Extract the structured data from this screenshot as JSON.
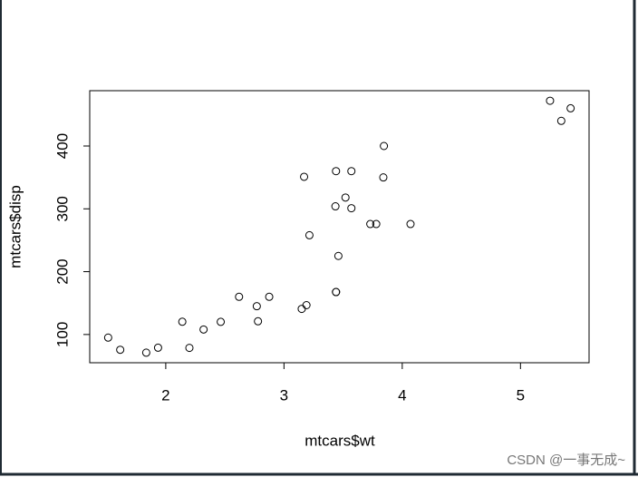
{
  "chart_data": {
    "type": "scatter",
    "x_label": "mtcars$wt",
    "y_label": "mtcars$disp",
    "x": [
      2.62,
      2.875,
      2.32,
      3.215,
      3.44,
      3.46,
      3.57,
      3.19,
      3.15,
      3.44,
      3.44,
      4.07,
      3.73,
      3.78,
      5.25,
      5.424,
      5.345,
      2.2,
      1.615,
      1.835,
      2.465,
      3.52,
      3.435,
      3.84,
      3.845,
      1.935,
      2.14,
      1.513,
      3.17,
      2.77,
      3.57,
      2.78
    ],
    "values": [
      160,
      160,
      108,
      258,
      360,
      225,
      360,
      146.7,
      140.8,
      167.6,
      167.6,
      275.8,
      275.8,
      275.8,
      472,
      460,
      440,
      78.7,
      75.7,
      71.1,
      120.1,
      318,
      304,
      350,
      400,
      79,
      120.3,
      95.1,
      351,
      145,
      301,
      121
    ],
    "color": "#000000",
    "xlim": [
      1.357,
      5.58
    ],
    "ylim": [
      55.06,
      488.04
    ],
    "xticks": [
      2,
      3,
      4,
      5
    ],
    "yticks": [
      100,
      200,
      300,
      400
    ]
  },
  "watermark": "CSDN @一事无成~"
}
